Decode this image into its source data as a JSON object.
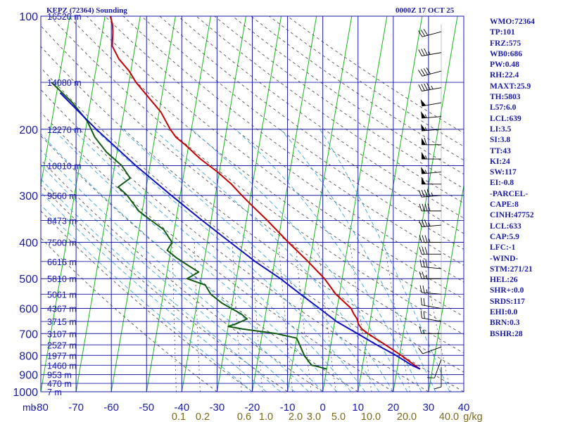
{
  "header": {
    "title": "KEPZ (72364) Sounding",
    "datetime": "0000Z 17 OCT 25"
  },
  "colors": {
    "axis": "#1a1aa8",
    "isotherm": "#18b818",
    "dry_adiabat": "#555555",
    "moist_adiabat": "#3aa8e0",
    "mixing_ratio": "#555555",
    "temperature": "#c80000",
    "dewpoint": "#105a10",
    "parcel": "#1010c0",
    "wind": "#000000"
  },
  "chart_data": {
    "type": "line",
    "chart_kind": "skew-T log-p sounding",
    "pressure_unit": "mb",
    "temperature_range": [
      -80,
      40
    ],
    "pressure_range": [
      1000,
      100
    ],
    "pressure_levels": [
      100,
      200,
      300,
      400,
      500,
      600,
      700,
      800,
      900,
      1000
    ],
    "pressure_tick_labels": [
      "100",
      "200",
      "300",
      "400",
      "500",
      "600",
      "700",
      "800",
      "900",
      "1000"
    ],
    "temperature_ticks": [
      -80,
      -70,
      -60,
      -50,
      -40,
      -30,
      -20,
      -10,
      0,
      10,
      20,
      30,
      40
    ],
    "temperature_tick_labels": [
      "-80",
      "-70",
      "-60",
      "-50",
      "-40",
      "-30",
      "-20",
      "-10",
      "0",
      "10",
      "20",
      "30",
      "40"
    ],
    "axis_unit_label": "mb",
    "height_labels": [
      {
        "p": 100,
        "text": "16520 m"
      },
      {
        "p": 150,
        "text": "14080 m"
      },
      {
        "p": 200,
        "text": "12270 m"
      },
      {
        "p": 250,
        "text": "10810 m"
      },
      {
        "p": 300,
        "text": "9560 m"
      },
      {
        "p": 350,
        "text": "8473 m"
      },
      {
        "p": 400,
        "text": "7500 m"
      },
      {
        "p": 450,
        "text": "6616 m"
      },
      {
        "p": 500,
        "text": "5810 m"
      },
      {
        "p": 550,
        "text": "5061 m"
      },
      {
        "p": 600,
        "text": "4367 m"
      },
      {
        "p": 650,
        "text": "3715 m"
      },
      {
        "p": 700,
        "text": "3107 m"
      },
      {
        "p": 750,
        "text": "2527 m"
      },
      {
        "p": 800,
        "text": "1977 m"
      },
      {
        "p": 850,
        "text": "1460 m"
      },
      {
        "p": 900,
        "text": "953 m"
      },
      {
        "p": 950,
        "text": "470 m"
      },
      {
        "p": 1000,
        "text": "7 m"
      }
    ],
    "mixing_ratio_unit": "g/kg",
    "mixing_ratio_labels": [
      "0.1",
      "0.2",
      "0.6",
      "1.0",
      "2.0",
      "3.0",
      "5.0",
      "10.0",
      "20.0",
      "40.0"
    ],
    "series": [
      {
        "name": "temperature",
        "points": [
          [
            870,
            26.5
          ],
          [
            850,
            24.8
          ],
          [
            800,
            20.5
          ],
          [
            750,
            15.5
          ],
          [
            700,
            10.0
          ],
          [
            680,
            8.0
          ],
          [
            660,
            6.8
          ],
          [
            640,
            6.2
          ],
          [
            620,
            5.0
          ],
          [
            600,
            4.0
          ],
          [
            550,
            -1.0
          ],
          [
            500,
            -5.0
          ],
          [
            450,
            -10.5
          ],
          [
            400,
            -17.0
          ],
          [
            350,
            -24.0
          ],
          [
            320,
            -29.0
          ],
          [
            300,
            -32.5
          ],
          [
            280,
            -36.0
          ],
          [
            260,
            -40.5
          ],
          [
            240,
            -46.0
          ],
          [
            220,
            -51.0
          ],
          [
            210,
            -54.0
          ],
          [
            200,
            -56.0
          ],
          [
            180,
            -59.5
          ],
          [
            160,
            -65.0
          ],
          [
            150,
            -68.0
          ],
          [
            140,
            -70.5
          ],
          [
            130,
            -74.0
          ],
          [
            120,
            -76.5
          ],
          [
            110,
            -77.0
          ],
          [
            105,
            -77.5
          ],
          [
            100,
            -78.5
          ]
        ]
      },
      {
        "name": "dewpoint",
        "points": [
          [
            870,
            0.0
          ],
          [
            855,
            -3.0
          ],
          [
            850,
            -4.5
          ],
          [
            800,
            -7.0
          ],
          [
            720,
            -10.0
          ],
          [
            700,
            -16.0
          ],
          [
            680,
            -26.0
          ],
          [
            670,
            -30.0
          ],
          [
            660,
            -28.0
          ],
          [
            640,
            -25.0
          ],
          [
            620,
            -27.0
          ],
          [
            600,
            -30.0
          ],
          [
            580,
            -33.0
          ],
          [
            550,
            -36.5
          ],
          [
            520,
            -38.5
          ],
          [
            500,
            -44.0
          ],
          [
            480,
            -41.0
          ],
          [
            460,
            -44.5
          ],
          [
            440,
            -48.0
          ],
          [
            420,
            -51.0
          ],
          [
            400,
            -50.0
          ],
          [
            390,
            -51.0
          ],
          [
            370,
            -53.0
          ],
          [
            350,
            -57.0
          ],
          [
            330,
            -61.0
          ],
          [
            300,
            -65.0
          ],
          [
            285,
            -68.0
          ],
          [
            270,
            -65.0
          ],
          [
            250,
            -68.0
          ],
          [
            230,
            -73.0
          ],
          [
            210,
            -77.0
          ],
          [
            190,
            -80.0
          ],
          [
            170,
            -85.0
          ],
          [
            150,
            -92.0
          ]
        ]
      },
      {
        "name": "parcel",
        "points": [
          [
            870,
            26.5
          ],
          [
            850,
            24.0
          ],
          [
            800,
            19.0
          ],
          [
            750,
            13.0
          ],
          [
            700,
            7.0
          ],
          [
            650,
            0.5
          ],
          [
            600,
            -5.0
          ],
          [
            550,
            -11.0
          ],
          [
            500,
            -17.5
          ],
          [
            450,
            -25.5
          ],
          [
            400,
            -33.5
          ],
          [
            350,
            -42.5
          ],
          [
            300,
            -52.5
          ],
          [
            250,
            -64.0
          ],
          [
            200,
            -77.0
          ],
          [
            160,
            -89.0
          ]
        ]
      }
    ],
    "wind_barbs": [
      {
        "p": 110,
        "dir": 255,
        "kt": 30
      },
      {
        "p": 125,
        "dir": 260,
        "kt": 35
      },
      {
        "p": 140,
        "dir": 255,
        "kt": 40
      },
      {
        "p": 155,
        "dir": 260,
        "kt": 45
      },
      {
        "p": 170,
        "dir": 260,
        "kt": 50
      },
      {
        "p": 185,
        "dir": 265,
        "kt": 55
      },
      {
        "p": 200,
        "dir": 265,
        "kt": 55
      },
      {
        "p": 220,
        "dir": 270,
        "kt": 60
      },
      {
        "p": 240,
        "dir": 270,
        "kt": 55
      },
      {
        "p": 260,
        "dir": 265,
        "kt": 55
      },
      {
        "p": 280,
        "dir": 270,
        "kt": 50
      },
      {
        "p": 300,
        "dir": 265,
        "kt": 45
      },
      {
        "p": 330,
        "dir": 270,
        "kt": 40
      },
      {
        "p": 360,
        "dir": 265,
        "kt": 35
      },
      {
        "p": 400,
        "dir": 270,
        "kt": 35
      },
      {
        "p": 430,
        "dir": 270,
        "kt": 30
      },
      {
        "p": 470,
        "dir": 275,
        "kt": 30
      },
      {
        "p": 500,
        "dir": 270,
        "kt": 25
      },
      {
        "p": 550,
        "dir": 275,
        "kt": 25
      },
      {
        "p": 600,
        "dir": 280,
        "kt": 20
      },
      {
        "p": 650,
        "dir": 280,
        "kt": 20
      },
      {
        "p": 700,
        "dir": 270,
        "kt": 15
      },
      {
        "p": 760,
        "dir": 250,
        "kt": 10
      },
      {
        "p": 820,
        "dir": 200,
        "kt": 10
      },
      {
        "p": 860,
        "dir": 180,
        "kt": 10
      }
    ]
  },
  "stats": [
    "WMO:72364",
    "TP:101",
    "FRZ:575",
    "WB0:686",
    "PW:0.48",
    "RH:22.4",
    "MAXT:25.9",
    "TH:5803",
    "L57:6.0",
    "LCL:639",
    "LI:3.5",
    "SI:3.8",
    "TT:43",
    "KI:24",
    "SW:117",
    "EI:-0.8",
    "-PARCEL-",
    "CAPE:8",
    "CINH:47752",
    "LCL:633",
    "CAP:5.9",
    "LFC:-1",
    "-WIND-",
    "STM:271/21",
    "HEL:26",
    "SHR+:0.0",
    "SRDS:117",
    "EHI:0.0",
    "BRN:0.3",
    "BSHR:28"
  ]
}
